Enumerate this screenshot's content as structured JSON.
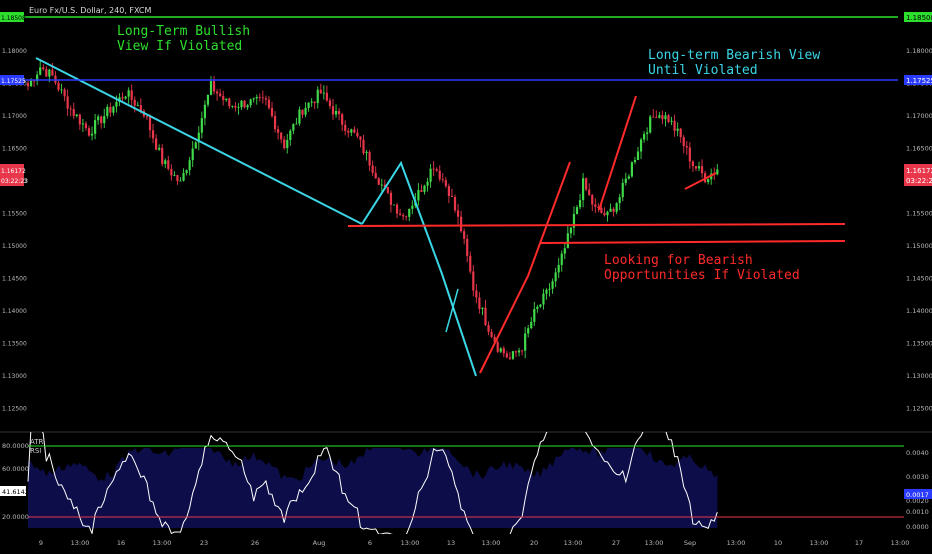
{
  "title": "Euro Fx/U.S. Dollar, 240, FXCM",
  "colors": {
    "bg": "#000000",
    "up": "#3fd94a",
    "down": "#e8364b",
    "green_level": "#2ddf2d",
    "blue_level": "#2a3bff",
    "cyan": "#3ad6e6",
    "red_line": "#ff2a2a",
    "grid_text": "#b8b8b8",
    "atr_fill": "#0d0d4a",
    "rsi": "#ffffff"
  },
  "labels": {
    "long_term_bullish": [
      "Long-Term Bullish",
      "View If Violated"
    ],
    "long_term_bearish": [
      "Long-term Bearish View",
      "Until Violated"
    ],
    "bearish_opps": [
      "Looking for Bearish",
      "Opportunities If Violated"
    ]
  },
  "price_axis": {
    "ticks": [
      "1.18000",
      "1.17500",
      "1.17000",
      "1.16500",
      "1.16000",
      "1.15500",
      "1.15000",
      "1.14500",
      "1.14000",
      "1.13500",
      "1.13000",
      "1.12500"
    ],
    "tag_green": "1.18508",
    "tag_blue": "1.17525",
    "tag_last": "1.16172",
    "tag_countdown": "03:22:23"
  },
  "indicator": {
    "atr_label": "ATR",
    "rsi_label": "RSI",
    "rsi_ticks": [
      "80.0000",
      "60.0000",
      "20.0000"
    ],
    "rsi_value": "41.6142",
    "atr_ticks": [
      "0.0040",
      "0.0030",
      "0.0020",
      "0.0010",
      "0.0000"
    ],
    "atr_value": "0.0017"
  },
  "time_axis": {
    "ticks": [
      "9",
      "13:00",
      "16",
      "13:00",
      "23",
      "26",
      "Aug",
      "6",
      "13:00",
      "13",
      "13:00",
      "20",
      "13:00",
      "27",
      "13:00",
      "Sep",
      "13:00",
      "10",
      "13:00",
      "17",
      "13:00",
      "13:0"
    ]
  },
  "chart_data": {
    "type": "candlestick",
    "title": "Euro Fx/U.S. Dollar, 240, FXCM",
    "ylim": [
      1.122,
      1.1875
    ],
    "levels": [
      1.18508,
      1.17525,
      1.1533,
      1.1507
    ],
    "last": 1.16172,
    "close_path": [
      [
        0,
        1.1745
      ],
      [
        4,
        1.1775
      ],
      [
        8,
        1.176
      ],
      [
        14,
        1.171
      ],
      [
        20,
        1.1675
      ],
      [
        26,
        1.1705
      ],
      [
        32,
        1.1735
      ],
      [
        38,
        1.1705
      ],
      [
        44,
        1.163
      ],
      [
        50,
        1.1595
      ],
      [
        54,
        1.165
      ],
      [
        60,
        1.1745
      ],
      [
        66,
        1.1715
      ],
      [
        72,
        1.172
      ],
      [
        78,
        1.172
      ],
      [
        84,
        1.1655
      ],
      [
        90,
        1.171
      ],
      [
        96,
        1.1735
      ],
      [
        102,
        1.1695
      ],
      [
        108,
        1.1665
      ],
      [
        113,
        1.162
      ],
      [
        118,
        1.1575
      ],
      [
        123,
        1.1545
      ],
      [
        128,
        1.158
      ],
      [
        133,
        1.1625
      ],
      [
        138,
        1.1585
      ],
      [
        142,
        1.1525
      ],
      [
        146,
        1.1435
      ],
      [
        150,
        1.1385
      ],
      [
        154,
        1.1345
      ],
      [
        158,
        1.1325
      ],
      [
        162,
        1.1345
      ],
      [
        166,
        1.1395
      ],
      [
        170,
        1.1425
      ],
      [
        174,
        1.1465
      ],
      [
        178,
        1.1525
      ],
      [
        182,
        1.1595
      ],
      [
        186,
        1.1555
      ],
      [
        190,
        1.1545
      ],
      [
        194,
        1.1575
      ],
      [
        198,
        1.1625
      ],
      [
        202,
        1.1675
      ],
      [
        206,
        1.1705
      ],
      [
        210,
        1.1695
      ],
      [
        214,
        1.1665
      ],
      [
        218,
        1.1625
      ],
      [
        222,
        1.1605
      ],
      [
        226,
        1.1617
      ]
    ],
    "rsi_levels": [
      80,
      20
    ],
    "rsi_last": 41.6142,
    "atr_last": 0.0017
  }
}
